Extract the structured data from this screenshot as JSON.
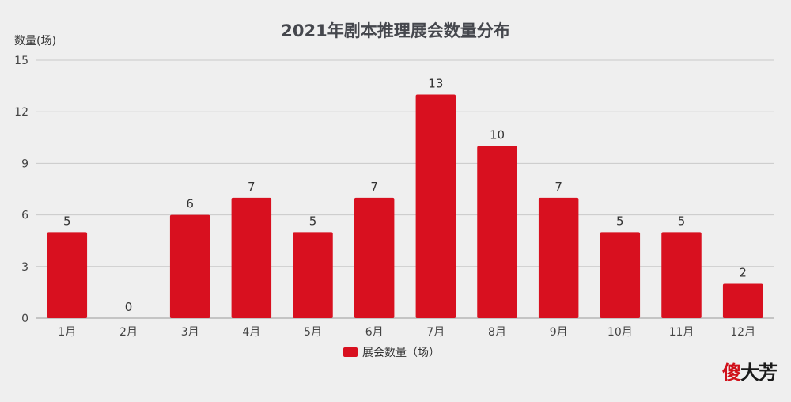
{
  "chart_data": {
    "type": "bar",
    "title": "2021年剧本推理展会数量分布",
    "ylabel": "数量(场)",
    "categories": [
      "1月",
      "2月",
      "3月",
      "4月",
      "5月",
      "6月",
      "7月",
      "8月",
      "9月",
      "10月",
      "11月",
      "12月"
    ],
    "series": [
      {
        "name": "展会数量（场）",
        "values": [
          5,
          0,
          6,
          7,
          5,
          7,
          13,
          10,
          7,
          5,
          5,
          2
        ],
        "color": "#d8101f"
      }
    ],
    "ylim": [
      0,
      15
    ],
    "yticks": [
      0,
      3,
      6,
      9,
      12,
      15
    ],
    "grid": true,
    "legend": "bottom-center",
    "data_labels": true
  },
  "watermark": {
    "first": "傻",
    "rest": "大芳"
  }
}
